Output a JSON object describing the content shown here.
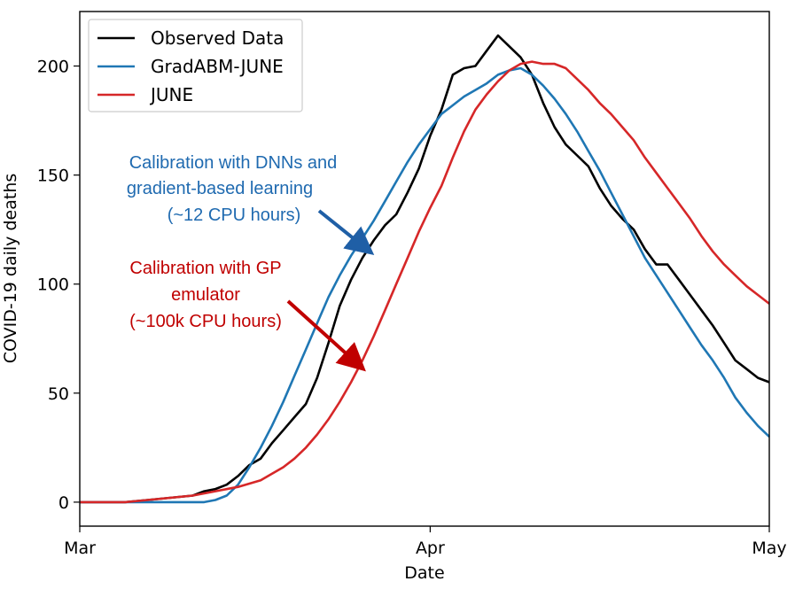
{
  "chart_data": {
    "type": "line",
    "xlabel": "Date",
    "ylabel": "COVID-19 daily deaths",
    "xlim": [
      0,
      61
    ],
    "ylim": [
      -11,
      225
    ],
    "x_ticks": [
      {
        "value": 0,
        "label": "Mar"
      },
      {
        "value": 31,
        "label": "Apr"
      },
      {
        "value": 61,
        "label": "May"
      }
    ],
    "y_ticks": [
      0,
      50,
      100,
      150,
      200
    ],
    "grid": false,
    "legend_position": "top-left",
    "series": [
      {
        "name": "Observed Data",
        "color": "#000000",
        "x": [
          0,
          2,
          4,
          6,
          8,
          10,
          11,
          12,
          13,
          14,
          15,
          16,
          17,
          18,
          19,
          20,
          21,
          22,
          23,
          24,
          25,
          26,
          27,
          28,
          29,
          30,
          31,
          32,
          33,
          34,
          35,
          36,
          37,
          38,
          39,
          40,
          41,
          42,
          43,
          44,
          45,
          46,
          47,
          48,
          49,
          50,
          51,
          52,
          53,
          54,
          55,
          56,
          57,
          58,
          59,
          60,
          61
        ],
        "values": [
          0,
          0,
          0,
          1,
          2,
          3,
          5,
          6,
          8,
          12,
          17,
          20,
          27,
          33,
          39,
          45,
          57,
          73,
          90,
          102,
          112,
          120,
          127,
          132,
          142,
          153,
          168,
          180,
          196,
          199,
          200,
          207,
          214,
          209,
          204,
          196,
          183,
          172,
          164,
          159,
          154,
          144,
          136,
          130,
          125,
          116,
          109,
          109,
          102,
          95,
          88,
          81,
          73,
          65,
          61,
          57,
          55
        ]
      },
      {
        "name": "GradABM-JUNE",
        "color": "#1f77b4",
        "x": [
          0,
          2,
          4,
          6,
          8,
          10,
          11,
          12,
          13,
          14,
          15,
          16,
          17,
          18,
          19,
          20,
          21,
          22,
          23,
          24,
          25,
          26,
          27,
          28,
          29,
          30,
          31,
          32,
          33,
          34,
          35,
          36,
          37,
          38,
          39,
          40,
          41,
          42,
          43,
          44,
          45,
          46,
          47,
          48,
          49,
          50,
          51,
          52,
          53,
          54,
          55,
          56,
          57,
          58,
          59,
          60,
          61
        ],
        "values": [
          0,
          0,
          0,
          0,
          0,
          0,
          0,
          1,
          3,
          8,
          16,
          25,
          35,
          46,
          58,
          70,
          82,
          94,
          104,
          113,
          121,
          129,
          138,
          147,
          156,
          164,
          171,
          178,
          182,
          186,
          189,
          192,
          196,
          198,
          199,
          196,
          191,
          185,
          178,
          170,
          161,
          152,
          142,
          132,
          122,
          112,
          104,
          96,
          88,
          80,
          72,
          65,
          57,
          48,
          41,
          35,
          30
        ]
      },
      {
        "name": "JUNE",
        "color": "#d62728",
        "x": [
          0,
          2,
          4,
          6,
          8,
          10,
          12,
          14,
          16,
          17,
          18,
          19,
          20,
          21,
          22,
          23,
          24,
          25,
          26,
          27,
          28,
          29,
          30,
          31,
          32,
          33,
          34,
          35,
          36,
          37,
          38,
          39,
          40,
          41,
          42,
          43,
          44,
          45,
          46,
          47,
          48,
          49,
          50,
          51,
          52,
          53,
          54,
          55,
          56,
          57,
          58,
          59,
          60,
          61
        ],
        "values": [
          0,
          0,
          0,
          1,
          2,
          3,
          5,
          7,
          10,
          13,
          16,
          20,
          25,
          31,
          38,
          46,
          55,
          65,
          76,
          88,
          100,
          112,
          124,
          135,
          145,
          158,
          170,
          180,
          187,
          193,
          198,
          201,
          202,
          201,
          201,
          199,
          194,
          189,
          183,
          178,
          172,
          166,
          158,
          151,
          144,
          137,
          130,
          122,
          115,
          109,
          104,
          99,
          95,
          91
        ]
      }
    ],
    "annotations": [
      {
        "lines": [
          "Calibration with DNNs and",
          "gradient-based learning",
          "(~12 CPU hours)"
        ],
        "color": "#1f6ab0",
        "points_to": "GradABM-JUNE"
      },
      {
        "lines": [
          "Calibration with GP",
          "emulator",
          "(~100k CPU hours)"
        ],
        "color": "#c00000",
        "points_to": "JUNE"
      }
    ]
  }
}
